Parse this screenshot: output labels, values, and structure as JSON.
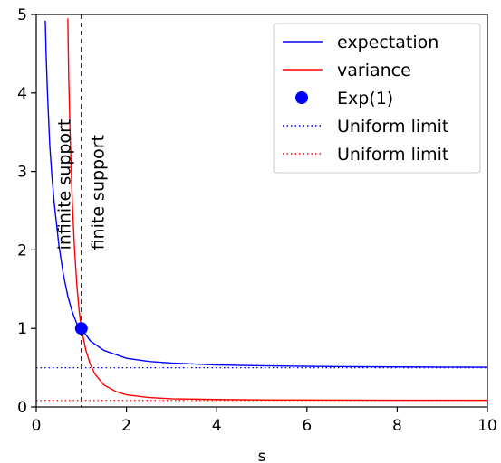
{
  "chart_data": {
    "type": "line",
    "xlabel": "s",
    "ylabel": "",
    "xlim": [
      0,
      10
    ],
    "ylim": [
      0,
      5
    ],
    "xticks": [
      0,
      2,
      4,
      6,
      8,
      10
    ],
    "yticks": [
      0,
      1,
      2,
      3,
      4,
      5
    ],
    "grid": false,
    "legend_position": "top-right",
    "series": [
      {
        "name": "expectation",
        "kind": "line",
        "color": "#0000ff",
        "x": [
          0.2,
          0.22,
          0.25,
          0.3,
          0.35,
          0.4,
          0.5,
          0.6,
          0.7,
          0.8,
          0.9,
          1.0,
          1.2,
          1.5,
          2.0,
          2.5,
          3.0,
          4.0,
          5.0,
          6.0,
          7.0,
          8.0,
          9.0,
          10.0
        ],
        "y": [
          4.92,
          4.47,
          3.99,
          3.33,
          2.92,
          2.59,
          2.07,
          1.69,
          1.41,
          1.21,
          1.06,
          1.0,
          0.84,
          0.72,
          0.62,
          0.58,
          0.56,
          0.535,
          0.525,
          0.518,
          0.513,
          0.51,
          0.508,
          0.506
        ]
      },
      {
        "name": "variance",
        "kind": "line",
        "color": "#ff0000",
        "x": [
          0.7,
          0.72,
          0.75,
          0.8,
          0.85,
          0.9,
          0.95,
          1.0,
          1.1,
          1.2,
          1.3,
          1.5,
          1.75,
          2.0,
          2.5,
          3.0,
          4.0,
          5.0,
          6.0,
          8.0,
          10.0
        ],
        "y": [
          4.95,
          4.2,
          3.5,
          2.6,
          2.0,
          1.55,
          1.23,
          1.0,
          0.72,
          0.54,
          0.42,
          0.28,
          0.2,
          0.155,
          0.12,
          0.105,
          0.095,
          0.09,
          0.088,
          0.086,
          0.085
        ]
      },
      {
        "name": "Exp(1)",
        "kind": "point",
        "color": "#0000ff",
        "x": [
          1
        ],
        "y": [
          1
        ]
      },
      {
        "name": "Uniform limit",
        "kind": "hline",
        "style": "dotted",
        "color": "#0000ff",
        "y": 0.5
      },
      {
        "name": "Uniform limit",
        "kind": "hline",
        "style": "dotted",
        "color": "#ff0000",
        "y": 0.0833
      }
    ],
    "vlines": [
      {
        "x": 1,
        "style": "dashed",
        "color": "#000000"
      }
    ],
    "annotations": [
      {
        "text": "infinite support",
        "x": 0.75,
        "y": 2.0
      },
      {
        "text": "finite support",
        "x": 1.5,
        "y": 2.0
      }
    ]
  }
}
